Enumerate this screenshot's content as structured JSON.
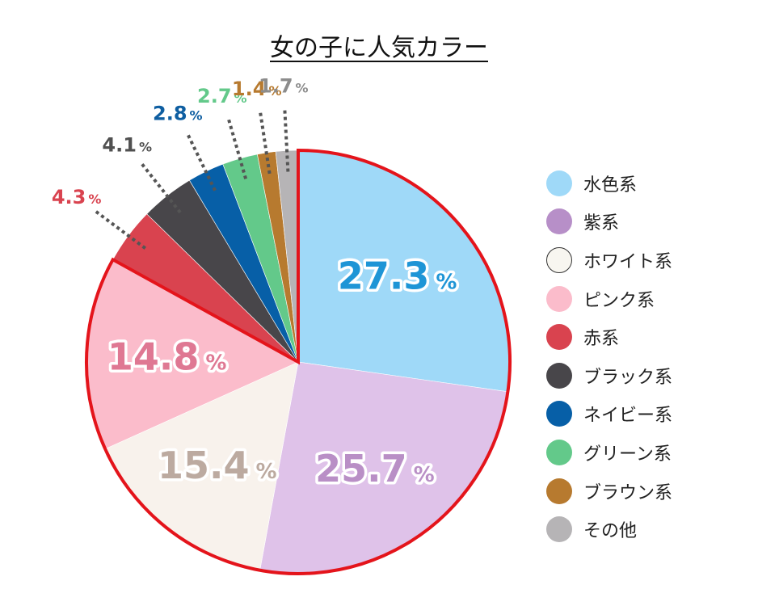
{
  "chart_data": {
    "type": "pie",
    "title": "女の子に人気カラー",
    "categories": [
      "水色系",
      "紫系",
      "ホワイト系",
      "ピンク系",
      "赤系",
      "ブラック系",
      "ネイビー系",
      "グリーン系",
      "ブラウン系",
      "その他"
    ],
    "values": [
      27.3,
      25.7,
      15.4,
      14.8,
      4.3,
      4.1,
      2.8,
      2.7,
      1.4,
      1.7
    ],
    "value_labels": [
      "27.3",
      "25.7",
      "15.4",
      "14.8",
      "4.3",
      "4.1",
      "2.8",
      "2.7",
      "1.4",
      "1.7"
    ],
    "unit": "%",
    "colors": [
      "#9fd9f8",
      "#dfc2e9",
      "#f8f2ec",
      "#fbbccb",
      "#d9434f",
      "#48464a",
      "#075fa7",
      "#63c98a",
      "#b77a2f",
      "#b6b4b6"
    ],
    "label_colors": [
      "#1e95d6",
      "#b98fc6",
      "#bcaaa0",
      "#df7893",
      "#d9434f",
      "#505050",
      "#0e5ea1",
      "#63c98a",
      "#b77a2f",
      "#8c8c8c"
    ],
    "legend_colors": [
      "#9fd9f8",
      "#b78fc8",
      "#f8f6f0",
      "#fbbccb",
      "#d9434f",
      "#48464a",
      "#075fa7",
      "#63c98a",
      "#b77a2f",
      "#b6b4b6"
    ],
    "highlight_outline_color": "#e4141b",
    "highlighted": [
      "水色系",
      "紫系",
      "ホワイト系",
      "ピンク系"
    ],
    "legend_position": "right"
  }
}
